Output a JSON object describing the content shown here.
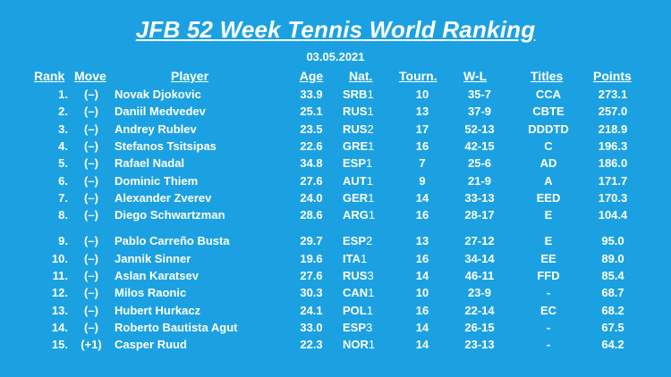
{
  "title": "JFB 52 Week Tennis World Ranking",
  "date": "03.05.2021",
  "headers": {
    "rank": "Rank",
    "move": "Move",
    "player": "Player",
    "age": "Age",
    "nat": "Nat.",
    "tourn": "Tourn.",
    "wl": "W-L",
    "titles": "Titles",
    "points": "Points"
  },
  "rows": [
    {
      "rank": "1.",
      "move": "(–)",
      "player": "Novak Djokovic",
      "age": "33.9",
      "nat": "SRB",
      "nat_sub": "1",
      "tourn": "10",
      "wl": "35-7",
      "titles": "CCA",
      "points": "273.1"
    },
    {
      "rank": "2.",
      "move": "(–)",
      "player": "Daniil Medvedev",
      "age": "25.1",
      "nat": "RUS",
      "nat_sub": "1",
      "tourn": "13",
      "wl": "37-9",
      "titles": "CBTE",
      "points": "257.0"
    },
    {
      "rank": "3.",
      "move": "(–)",
      "player": "Andrey Rublev",
      "age": "23.5",
      "nat": "RUS",
      "nat_sub": "2",
      "tourn": "17",
      "wl": "52-13",
      "titles": "DDDTD",
      "points": "218.9"
    },
    {
      "rank": "4.",
      "move": "(–)",
      "player": "Stefanos Tsitsipas",
      "age": "22.6",
      "nat": "GRE",
      "nat_sub": "1",
      "tourn": "16",
      "wl": "42-15",
      "titles": "C",
      "points": "196.3"
    },
    {
      "rank": "5.",
      "move": "(–)",
      "player": "Rafael Nadal",
      "age": "34.8",
      "nat": "ESP",
      "nat_sub": "1",
      "tourn": "7",
      "wl": "25-6",
      "titles": "AD",
      "points": "186.0"
    },
    {
      "rank": "6.",
      "move": "(–)",
      "player": "Dominic Thiem",
      "age": "27.6",
      "nat": "AUT",
      "nat_sub": "1",
      "tourn": "9",
      "wl": "21-9",
      "titles": "A",
      "points": "171.7"
    },
    {
      "rank": "7.",
      "move": "(–)",
      "player": "Alexander Zverev",
      "age": "24.0",
      "nat": "GER",
      "nat_sub": "1",
      "tourn": "14",
      "wl": "33-13",
      "titles": "EED",
      "points": "170.3"
    },
    {
      "rank": "8.",
      "move": "(–)",
      "player": "Diego Schwartzman",
      "age": "28.6",
      "nat": "ARG",
      "nat_sub": "1",
      "tourn": "16",
      "wl": "28-17",
      "titles": "E",
      "points": "104.4"
    },
    {
      "rank": "9.",
      "move": "(–)",
      "player": "Pablo Carreño Busta",
      "age": "29.7",
      "nat": "ESP",
      "nat_sub": "2",
      "tourn": "13",
      "wl": "27-12",
      "titles": "E",
      "points": "95.0"
    },
    {
      "rank": "10.",
      "move": "(–)",
      "player": "Jannik Sinner",
      "age": "19.6",
      "nat": "ITA",
      "nat_sub": "1",
      "tourn": "16",
      "wl": "34-14",
      "titles": "EE",
      "points": "89.0"
    },
    {
      "rank": "11.",
      "move": "(–)",
      "player": "Aslan Karatsev",
      "age": "27.6",
      "nat": "RUS",
      "nat_sub": "3",
      "tourn": "14",
      "wl": "46-11",
      "titles": "FFD",
      "points": "85.4"
    },
    {
      "rank": "12.",
      "move": "(–)",
      "player": "Milos Raonic",
      "age": "30.3",
      "nat": "CAN",
      "nat_sub": "1",
      "tourn": "10",
      "wl": "23-9",
      "titles": "-",
      "points": "68.7"
    },
    {
      "rank": "13.",
      "move": "(–)",
      "player": "Hubert Hurkacz",
      "age": "24.1",
      "nat": "POL",
      "nat_sub": "1",
      "tourn": "16",
      "wl": "22-14",
      "titles": "EC",
      "points": "68.2"
    },
    {
      "rank": "14.",
      "move": "(–)",
      "player": "Roberto Bautista Agut",
      "age": "33.0",
      "nat": "ESP",
      "nat_sub": "3",
      "tourn": "14",
      "wl": "26-15",
      "titles": "-",
      "points": "67.5"
    },
    {
      "rank": "15.",
      "move": "(+1)",
      "player": "Casper Ruud",
      "age": "22.3",
      "nat": "NOR",
      "nat_sub": "1",
      "tourn": "14",
      "wl": "23-13",
      "titles": "-",
      "points": "64.2"
    }
  ]
}
